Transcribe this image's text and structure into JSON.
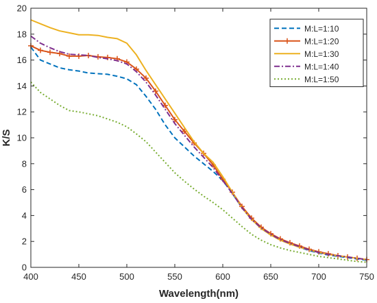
{
  "chart_data": {
    "type": "line",
    "title": "",
    "xlabel": "Wavelength(nm)",
    "ylabel": "K/S",
    "xlim": [
      400,
      750
    ],
    "ylim": [
      0,
      20
    ],
    "xticks": [
      400,
      450,
      500,
      550,
      600,
      650,
      700,
      750
    ],
    "yticks": [
      0,
      2,
      4,
      6,
      8,
      10,
      12,
      14,
      16,
      18,
      20
    ],
    "grid": false,
    "legend_position": "top-right",
    "x": [
      400,
      410,
      420,
      430,
      440,
      450,
      460,
      470,
      480,
      490,
      500,
      510,
      520,
      530,
      540,
      550,
      560,
      570,
      580,
      590,
      600,
      610,
      620,
      630,
      640,
      650,
      660,
      670,
      680,
      690,
      700,
      710,
      720,
      730,
      740,
      750
    ],
    "series": [
      {
        "name": "M:L=1:10",
        "color": "#0072BD",
        "dash": "dash",
        "marker": "none",
        "values": [
          17.0,
          16.0,
          15.7,
          15.4,
          15.25,
          15.15,
          15.0,
          14.95,
          14.9,
          14.75,
          14.55,
          14.1,
          13.2,
          12.2,
          11.0,
          10.0,
          9.3,
          8.6,
          8.0,
          7.4,
          6.7,
          5.7,
          4.6,
          3.7,
          3.0,
          2.5,
          2.1,
          1.8,
          1.55,
          1.3,
          1.1,
          0.95,
          0.85,
          0.75,
          0.65,
          0.55
        ]
      },
      {
        "name": "M:L=1:20",
        "color": "#D95319",
        "dash": "solid",
        "marker": "plus",
        "values": [
          17.1,
          16.75,
          16.6,
          16.5,
          16.3,
          16.3,
          16.35,
          16.25,
          16.2,
          16.1,
          15.85,
          15.3,
          14.6,
          13.6,
          12.5,
          11.4,
          10.5,
          9.6,
          8.8,
          7.9,
          6.8,
          5.8,
          4.7,
          3.8,
          3.1,
          2.6,
          2.2,
          1.9,
          1.65,
          1.4,
          1.2,
          1.05,
          0.9,
          0.8,
          0.7,
          0.6
        ]
      },
      {
        "name": "M:L=1:30",
        "color": "#EDB120",
        "dash": "solid",
        "marker": "none",
        "values": [
          19.1,
          18.8,
          18.5,
          18.25,
          18.1,
          17.95,
          17.95,
          17.9,
          17.75,
          17.65,
          17.3,
          16.4,
          15.2,
          14.1,
          13.0,
          11.9,
          10.8,
          9.7,
          8.8,
          8.1,
          7.0,
          5.8,
          4.6,
          3.7,
          3.0,
          2.5,
          2.1,
          1.8,
          1.55,
          1.35,
          1.15,
          1.0,
          0.9,
          0.8,
          0.7,
          0.6
        ]
      },
      {
        "name": "M:L=1:40",
        "color": "#7E2F8E",
        "dash": "dashdot",
        "marker": "none",
        "values": [
          17.85,
          17.3,
          16.95,
          16.65,
          16.45,
          16.4,
          16.35,
          16.2,
          16.1,
          15.95,
          15.7,
          15.1,
          14.3,
          13.3,
          12.2,
          11.1,
          10.2,
          9.3,
          8.5,
          7.7,
          6.7,
          5.7,
          4.6,
          3.7,
          3.05,
          2.55,
          2.15,
          1.85,
          1.6,
          1.35,
          1.15,
          1.0,
          0.9,
          0.8,
          0.7,
          0.6
        ]
      },
      {
        "name": "M:L=1:50",
        "color": "#77AC30",
        "dash": "dot",
        "marker": "none",
        "values": [
          14.3,
          13.5,
          13.0,
          12.5,
          12.1,
          12.0,
          11.85,
          11.7,
          11.45,
          11.2,
          10.85,
          10.3,
          9.7,
          8.9,
          8.1,
          7.3,
          6.65,
          6.05,
          5.5,
          5.0,
          4.45,
          3.8,
          3.15,
          2.55,
          2.1,
          1.75,
          1.5,
          1.3,
          1.15,
          1.0,
          0.85,
          0.75,
          0.65,
          0.55,
          0.45,
          0.4
        ]
      }
    ]
  }
}
